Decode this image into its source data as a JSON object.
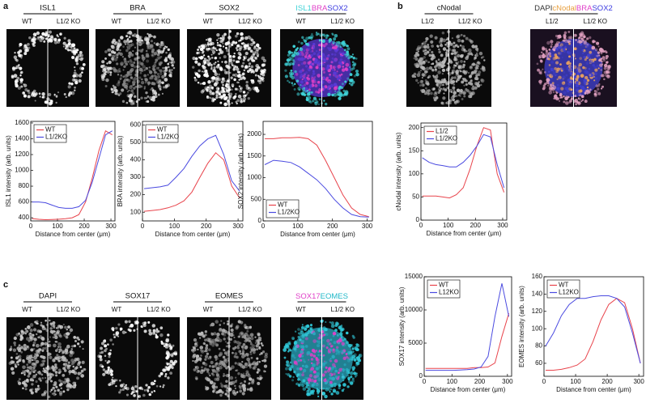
{
  "panels": [
    {
      "label": "a"
    },
    {
      "label": "b"
    },
    {
      "label": "c"
    }
  ],
  "images": [
    {
      "title": "ISL1",
      "left": "WT",
      "right": "L1/2 KO"
    },
    {
      "title": "BRA",
      "left": "WT",
      "right": "L1/2 KO"
    },
    {
      "title": "SOX2",
      "left": "WT",
      "right": "L1/2 KO"
    },
    {
      "title_parts": [
        "ISL1",
        "BRA",
        "SOX2"
      ],
      "left": "WT",
      "right": "L1/2 KO"
    },
    {
      "title": "cNodal",
      "left": "L1/2",
      "right": "L1/2 KO"
    },
    {
      "title_parts": [
        "DAPI",
        "cNodal",
        "BRA",
        "SOX2"
      ],
      "left": "L1/2",
      "right": "L1/2 KO"
    },
    {
      "title": "DAPI",
      "left": "WT",
      "right": "L1/2 KO"
    },
    {
      "title": "SOX17",
      "left": "WT",
      "right": "L1/2 KO"
    },
    {
      "title": "EOMES",
      "left": "WT",
      "right": "L1/2 KO"
    },
    {
      "title_parts": [
        "SOX17",
        "EOMES"
      ],
      "left": "WT",
      "right": "L1/2 KO"
    }
  ],
  "chart_data": [
    {
      "type": "line",
      "xlabel": "Distance from center (μm)",
      "ylabel": "ISL1 intensity (arb. units)",
      "x": [
        5,
        30,
        55,
        80,
        105,
        130,
        155,
        180,
        205,
        230,
        255,
        280,
        305
      ],
      "xlim": [
        0,
        315
      ],
      "xticks": [
        0,
        100,
        200,
        300
      ],
      "ylim": [
        360,
        1620
      ],
      "yticks": [
        400,
        600,
        800,
        1000,
        1200,
        1400,
        1600
      ],
      "legend": "upper left",
      "series": [
        {
          "name": "WT",
          "color": "#e8434b",
          "values": [
            390,
            380,
            375,
            378,
            382,
            388,
            400,
            440,
            600,
            900,
            1250,
            1500,
            1450
          ]
        },
        {
          "name": "L1/2KO",
          "color": "#4a4ae0",
          "values": [
            600,
            600,
            590,
            560,
            530,
            520,
            520,
            540,
            620,
            850,
            1150,
            1450,
            1500
          ]
        }
      ]
    },
    {
      "type": "line",
      "xlabel": "Distance from center (μm)",
      "ylabel": "BRA intensity (arb. units)",
      "x": [
        5,
        30,
        55,
        80,
        105,
        130,
        155,
        180,
        205,
        230,
        255,
        280,
        305
      ],
      "xlim": [
        0,
        315
      ],
      "xticks": [
        0,
        100,
        200,
        300
      ],
      "ylim": [
        50,
        620
      ],
      "yticks": [
        100,
        200,
        300,
        400,
        500,
        600
      ],
      "legend": "upper left",
      "series": [
        {
          "name": "WT",
          "color": "#e8434b",
          "values": [
            105,
            110,
            115,
            125,
            140,
            165,
            215,
            300,
            380,
            440,
            400,
            250,
            180
          ]
        },
        {
          "name": "L1/2KO",
          "color": "#4a4ae0",
          "values": [
            235,
            240,
            245,
            255,
            300,
            350,
            420,
            480,
            520,
            540,
            430,
            280,
            220
          ]
        }
      ]
    },
    {
      "type": "line",
      "xlabel": "Distance from center (μm)",
      "ylabel": "SOX2 intensity (arb. units)",
      "x": [
        5,
        30,
        55,
        80,
        105,
        130,
        155,
        180,
        205,
        230,
        255,
        280,
        305
      ],
      "xlim": [
        0,
        315
      ],
      "xticks": [
        0,
        100,
        200,
        300
      ],
      "ylim": [
        0,
        2300
      ],
      "yticks": [
        0,
        500,
        1000,
        1500,
        2000
      ],
      "legend": "lower left",
      "series": [
        {
          "name": "WT",
          "color": "#e8434b",
          "values": [
            1900,
            1900,
            1920,
            1920,
            1930,
            1900,
            1750,
            1400,
            1000,
            600,
            300,
            150,
            100
          ]
        },
        {
          "name": "L1/2KO",
          "color": "#4a4ae0",
          "values": [
            1300,
            1400,
            1380,
            1350,
            1250,
            1100,
            950,
            750,
            500,
            300,
            150,
            100,
            90
          ]
        }
      ]
    },
    {
      "type": "line",
      "xlabel": "Distance from center (μm)",
      "ylabel": "cNodal intensity (arb. units)",
      "x": [
        5,
        30,
        55,
        80,
        105,
        130,
        155,
        180,
        205,
        230,
        255,
        280,
        305
      ],
      "xlim": [
        0,
        315
      ],
      "xticks": [
        0,
        100,
        200,
        300
      ],
      "ylim": [
        0,
        210
      ],
      "yticks": [
        0,
        50,
        100,
        150,
        200
      ],
      "legend": "upper left",
      "series": [
        {
          "name": "L1/2",
          "color": "#e8434b",
          "values": [
            52,
            52,
            52,
            50,
            48,
            55,
            70,
            110,
            160,
            200,
            195,
            100,
            60
          ]
        },
        {
          "name": "L1/2KO",
          "color": "#4a4ae0",
          "values": [
            135,
            125,
            120,
            118,
            115,
            115,
            125,
            140,
            160,
            185,
            180,
            120,
            70
          ]
        }
      ]
    },
    {
      "type": "line",
      "xlabel": "Distance from center (μm)",
      "ylabel": "SOX17 intensity (arb. units)",
      "x": [
        5,
        30,
        55,
        80,
        105,
        130,
        155,
        180,
        205,
        230,
        255,
        280,
        305
      ],
      "xlim": [
        0,
        315
      ],
      "xticks": [
        0,
        100,
        200,
        300
      ],
      "ylim": [
        0,
        15000
      ],
      "yticks": [
        0,
        5000,
        10000,
        15000
      ],
      "legend": "upper left",
      "series": [
        {
          "name": "WT",
          "color": "#e8434b",
          "values": [
            1200,
            1200,
            1200,
            1200,
            1200,
            1200,
            1200,
            1300,
            1300,
            1400,
            2000,
            6000,
            9500
          ]
        },
        {
          "name": "L12KO",
          "color": "#4a4ae0",
          "values": [
            900,
            900,
            900,
            900,
            900,
            950,
            1000,
            1100,
            1400,
            3000,
            9000,
            14000,
            9000
          ]
        }
      ]
    },
    {
      "type": "line",
      "xlabel": "Distance from center (μm)",
      "ylabel": "EOMES intensity (arb. units)",
      "x": [
        5,
        30,
        55,
        80,
        105,
        130,
        155,
        180,
        205,
        230,
        255,
        280,
        305
      ],
      "xlim": [
        0,
        315
      ],
      "xticks": [
        0,
        100,
        200,
        300
      ],
      "ylim": [
        45,
        160
      ],
      "yticks": [
        60,
        80,
        100,
        120,
        140,
        160
      ],
      "legend": "upper left",
      "series": [
        {
          "name": "WT",
          "color": "#e8434b",
          "values": [
            52,
            52,
            53,
            55,
            58,
            65,
            85,
            110,
            128,
            135,
            130,
            100,
            60
          ]
        },
        {
          "name": "L12KO",
          "color": "#4a4ae0",
          "values": [
            80,
            95,
            115,
            128,
            135,
            135,
            137,
            138,
            138,
            135,
            125,
            95,
            60
          ]
        }
      ]
    }
  ]
}
